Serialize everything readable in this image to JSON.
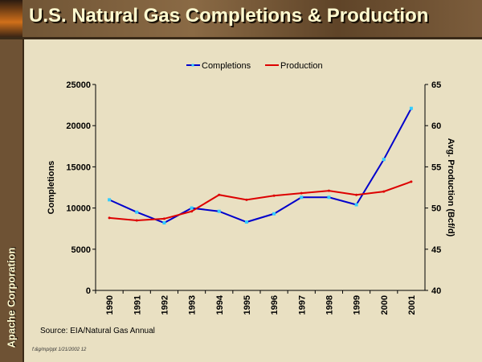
{
  "header": {
    "title": "U.S. Natural Gas Completions & Production"
  },
  "sidebar": {
    "company": "Apache Corporation"
  },
  "footer": {
    "source": "Source:  EIA/Natural Gas Annual",
    "code": "f:&g/mp/ppt 1/21/2002 12"
  },
  "chart_data": {
    "type": "line",
    "title": "U.S. Natural Gas Completions & Production",
    "x": [
      "1990",
      "1991",
      "1992",
      "1993",
      "1994",
      "1995",
      "1996",
      "1997",
      "1998",
      "1999",
      "2000",
      "2001"
    ],
    "series": [
      {
        "name": "Completions",
        "axis": "left",
        "color": "#0000cc",
        "marker_color": "#33ccff",
        "values": [
          11000,
          9500,
          8200,
          10000,
          9600,
          8300,
          9300,
          11300,
          11300,
          10400,
          15900,
          22100
        ]
      },
      {
        "name": "Production",
        "axis": "right",
        "color": "#dd0000",
        "values": [
          48.8,
          48.5,
          48.7,
          49.6,
          51.6,
          51.0,
          51.5,
          51.8,
          52.1,
          51.6,
          52.0,
          53.2
        ]
      }
    ],
    "ylabel": "Completions",
    "ylim": [
      0,
      25000
    ],
    "yticks": [
      "0",
      "5000",
      "10000",
      "15000",
      "20000",
      "25000"
    ],
    "y2label": "Avg. Production (Bcf/d)",
    "y2lim": [
      40,
      65
    ],
    "y2ticks": [
      "40",
      "45",
      "50",
      "55",
      "60",
      "65"
    ],
    "legend": "top-center",
    "grid": false
  }
}
